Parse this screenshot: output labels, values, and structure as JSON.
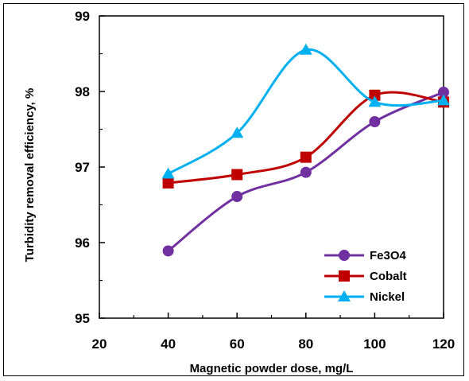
{
  "chart_data": {
    "type": "line",
    "xlabel": "Magnetic powder dose, mg/L",
    "ylabel": "Turbidity removal efficiency, %",
    "xlim": [
      20,
      120
    ],
    "ylim": [
      95,
      99
    ],
    "xticks": [
      20,
      40,
      60,
      80,
      100,
      120
    ],
    "yticks": [
      95,
      96,
      97,
      98,
      99
    ],
    "x": [
      40,
      60,
      80,
      100,
      120
    ],
    "series": [
      {
        "name": "Fe3O4",
        "marker": "circle",
        "color": "#7030A0",
        "values": [
          95.89,
          96.61,
          96.93,
          97.6,
          97.99
        ]
      },
      {
        "name": "Cobalt",
        "marker": "square",
        "color": "#C00000",
        "values": [
          96.79,
          96.9,
          97.13,
          97.95,
          97.86
        ]
      },
      {
        "name": "Nickel",
        "marker": "triangle",
        "color": "#00B0F0",
        "values": [
          96.91,
          97.45,
          98.55,
          97.86,
          97.88
        ]
      }
    ],
    "legend": "bottom-right",
    "grid": false
  }
}
